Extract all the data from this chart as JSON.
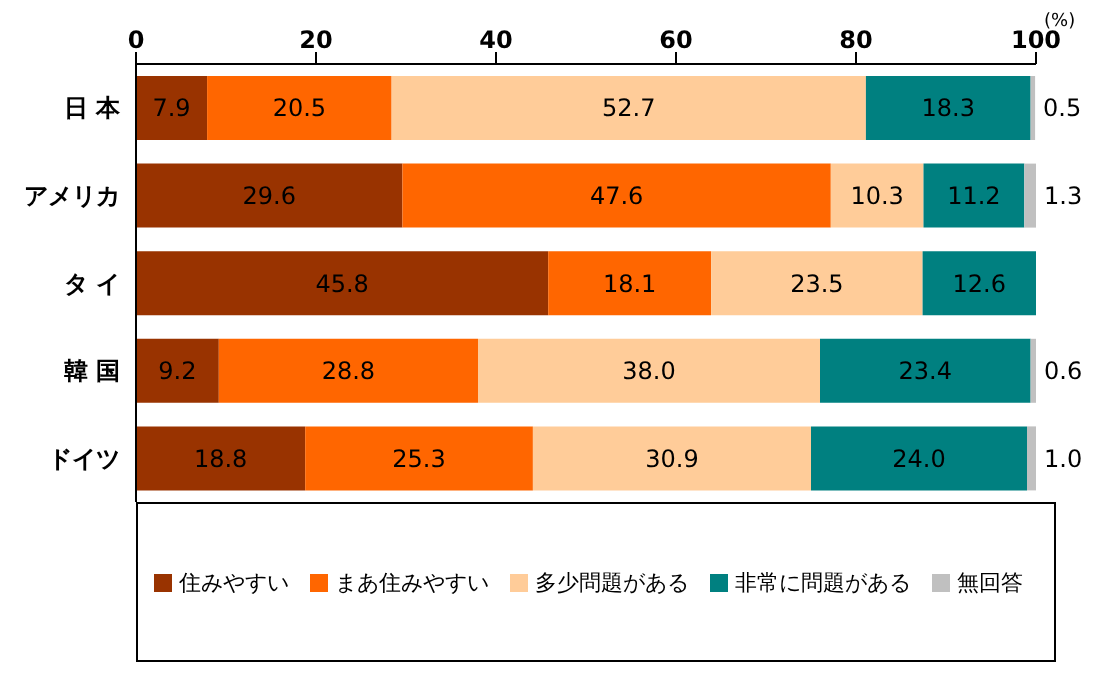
{
  "chart_data": {
    "type": "bar",
    "orientation": "horizontal",
    "stacked": true,
    "xlabel": "(%)",
    "categories": [
      "日 本",
      "アメリカ",
      "タ イ",
      "韓 国",
      "ドイツ"
    ],
    "xlim": [
      0,
      100
    ],
    "xticks": [
      0,
      20,
      40,
      60,
      80,
      100
    ],
    "legend": "bottom",
    "grid": false,
    "series": [
      {
        "name": "住みやすい",
        "color": "#993300",
        "values": [
          7.9,
          29.6,
          45.8,
          9.2,
          18.8
        ],
        "value_labels": [
          "7.9",
          "29.6",
          "45.8",
          "9.2",
          "18.8"
        ]
      },
      {
        "name": "まあ住みやすい",
        "color": "#ff6600",
        "values": [
          20.5,
          47.6,
          18.1,
          28.8,
          25.3
        ],
        "value_labels": [
          "20.5",
          "47.6",
          "18.1",
          "28.8",
          "25.3"
        ]
      },
      {
        "name": "多少問題がある",
        "color": "#ffcc99",
        "values": [
          52.7,
          10.3,
          23.5,
          38.0,
          30.9
        ],
        "value_labels": [
          "52.7",
          "10.3",
          "23.5",
          "38.0",
          "30.9"
        ]
      },
      {
        "name": "非常に問題がある",
        "color": "#008080",
        "values": [
          18.3,
          11.2,
          12.6,
          23.4,
          24.0
        ],
        "value_labels": [
          "18.3",
          "11.2",
          "12.6",
          "23.4",
          "24.0"
        ]
      },
      {
        "name": "無回答",
        "color": "#c0c0c0",
        "values": [
          0.5,
          1.3,
          null,
          0.6,
          1.0
        ],
        "value_labels": [
          "0.5",
          "1.3",
          null,
          "0.6",
          "1.0"
        ]
      }
    ]
  }
}
